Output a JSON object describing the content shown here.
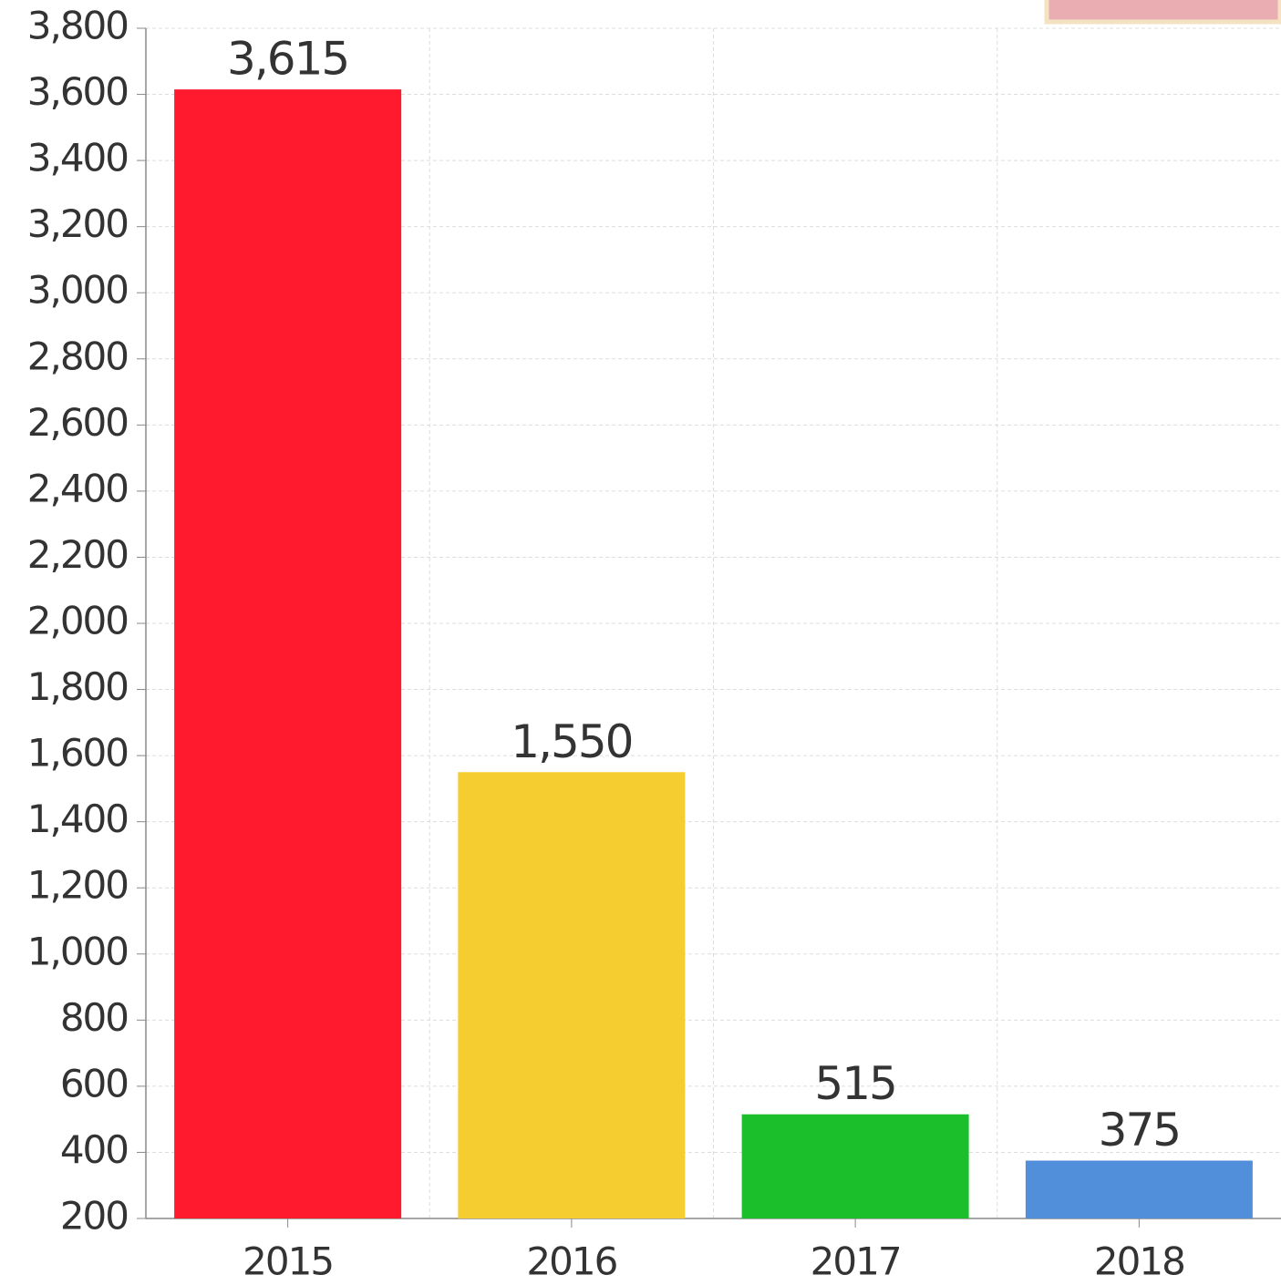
{
  "chart_data": {
    "type": "bar",
    "categories": [
      "2015",
      "2016",
      "2017",
      "2018"
    ],
    "values": [
      3615,
      1550,
      515,
      375
    ],
    "value_labels": [
      "3,615",
      "1,550",
      "515",
      "375"
    ],
    "colors": [
      "#ff1a2e",
      "#f5cd30",
      "#1bbf2c",
      "#528fdb"
    ],
    "ylim": [
      200,
      3800
    ],
    "yticks": [
      200,
      400,
      600,
      800,
      {
        "value": 1000,
        "label": "1,000"
      },
      {
        "value": 1200,
        "label": "1,200"
      },
      {
        "value": 1400,
        "label": "1,400"
      },
      {
        "value": 1600,
        "label": "1,600"
      },
      {
        "value": 1800,
        "label": "1,800"
      },
      {
        "value": 2000,
        "label": "2,000"
      },
      {
        "value": 2200,
        "label": "2,200"
      },
      {
        "value": 2400,
        "label": "2,400"
      },
      {
        "value": 2600,
        "label": "2,600"
      },
      {
        "value": 2800,
        "label": "2,800"
      },
      {
        "value": 3000,
        "label": "3,000"
      },
      {
        "value": 3200,
        "label": "3,200"
      },
      {
        "value": 3400,
        "label": "3,400"
      },
      {
        "value": 3600,
        "label": "3,600"
      },
      {
        "value": 3800,
        "label": "3,800"
      }
    ],
    "grid": true
  }
}
